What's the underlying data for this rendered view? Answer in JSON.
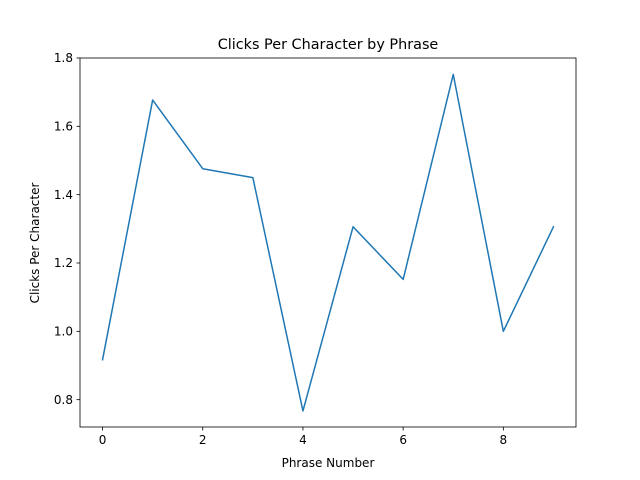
{
  "chart_data": {
    "type": "line",
    "title": "Clicks Per Character by Phrase",
    "xlabel": "Phrase Number",
    "ylabel": "Clicks Per Character",
    "xlim": [
      -0.45,
      9.45
    ],
    "ylim": [
      0.72,
      1.8
    ],
    "xticks": [
      0,
      2,
      4,
      6,
      8
    ],
    "xtick_labels": [
      "0",
      "2",
      "4",
      "6",
      "8"
    ],
    "yticks": [
      0.8,
      1.0,
      1.2,
      1.4,
      1.6,
      1.8
    ],
    "ytick_labels": [
      "0.8",
      "1.0",
      "1.2",
      "1.4",
      "1.6",
      "1.8"
    ],
    "grid": false,
    "x": [
      0,
      1,
      2,
      3,
      4,
      5,
      6,
      7,
      8,
      9
    ],
    "series": [
      {
        "values": [
          0.917,
          1.677,
          1.476,
          1.45,
          0.767,
          1.306,
          1.152,
          1.752,
          1.0,
          1.306
        ],
        "color": "#1f77b4"
      }
    ]
  }
}
